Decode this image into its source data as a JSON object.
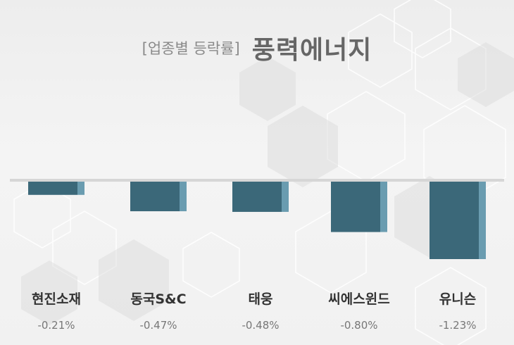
{
  "title": {
    "prefix": "[업종별 등락률]",
    "main": "풍력에너지"
  },
  "colors": {
    "bar_main": "#3b6879",
    "bar_side": "#6a9cb0",
    "baseline": "#d6d6d6"
  },
  "chart_data": {
    "type": "bar",
    "title": "[업종별 등락률] 풍력에너지",
    "categories": [
      "현진소재",
      "동국S&C",
      "태웅",
      "씨에스윈드",
      "유니슨"
    ],
    "values": [
      -0.21,
      -0.47,
      -0.48,
      -0.8,
      -1.23
    ],
    "value_labels": [
      "-0.21%",
      "-0.47%",
      "-0.48%",
      "-0.80%",
      "-1.23%"
    ],
    "xlabel": "",
    "ylabel": "",
    "unit": "%",
    "ylim": [
      -1.23,
      0
    ],
    "grid": false,
    "legend": "none"
  }
}
